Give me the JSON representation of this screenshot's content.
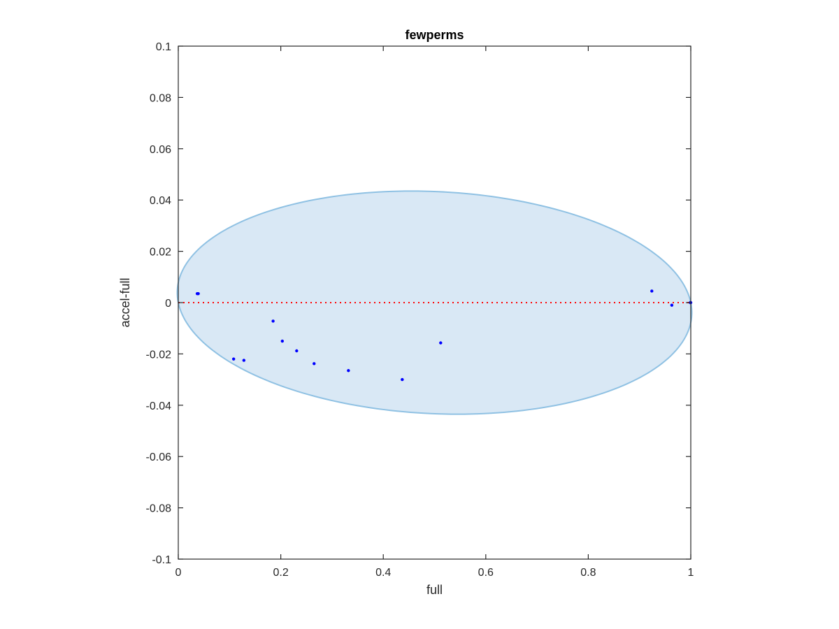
{
  "chart_data": {
    "type": "scatter",
    "title": "fewperms",
    "xlabel": "full",
    "ylabel": "accel-full",
    "xlim": [
      0,
      1
    ],
    "ylim": [
      -0.1,
      0.1
    ],
    "x_ticks": [
      0,
      0.2,
      0.4,
      0.6,
      0.8,
      1
    ],
    "x_tick_labels": [
      "0",
      "0.2",
      "0.4",
      "0.6",
      "0.8",
      "1"
    ],
    "y_ticks": [
      -0.1,
      -0.08,
      -0.06,
      -0.04,
      -0.02,
      0,
      0.02,
      0.04,
      0.06,
      0.08,
      0.1
    ],
    "y_tick_labels": [
      "-0.1",
      "-0.08",
      "-0.06",
      "-0.04",
      "-0.02",
      "0",
      "0.02",
      "0.04",
      "0.06",
      "0.08",
      "0.1"
    ],
    "grid": false,
    "reference_line": {
      "y": 0,
      "style": "dotted",
      "color": "#ff0000"
    },
    "ellipse": {
      "center": [
        0.5,
        0
      ],
      "half_width": 0.5,
      "half_height": 0.0435,
      "tilt_offset": 0.045,
      "fill_color": "#d9e8f5",
      "stroke_color": "#8fc1e3"
    },
    "marker_color": "#0000ff",
    "points": [
      {
        "x": 0.037,
        "y": 0.0035
      },
      {
        "x": 0.039,
        "y": 0.0035
      },
      {
        "x": 0.108,
        "y": -0.022
      },
      {
        "x": 0.128,
        "y": -0.0225
      },
      {
        "x": 0.185,
        "y": -0.0072
      },
      {
        "x": 0.203,
        "y": -0.015
      },
      {
        "x": 0.231,
        "y": -0.0188
      },
      {
        "x": 0.265,
        "y": -0.0238
      },
      {
        "x": 0.332,
        "y": -0.0265
      },
      {
        "x": 0.437,
        "y": -0.03
      },
      {
        "x": 0.512,
        "y": -0.0157
      },
      {
        "x": 0.924,
        "y": 0.0045
      },
      {
        "x": 0.963,
        "y": -0.001
      },
      {
        "x": 0.999,
        "y": 0.0
      },
      {
        "x": 1.0,
        "y": 0.0
      }
    ]
  }
}
